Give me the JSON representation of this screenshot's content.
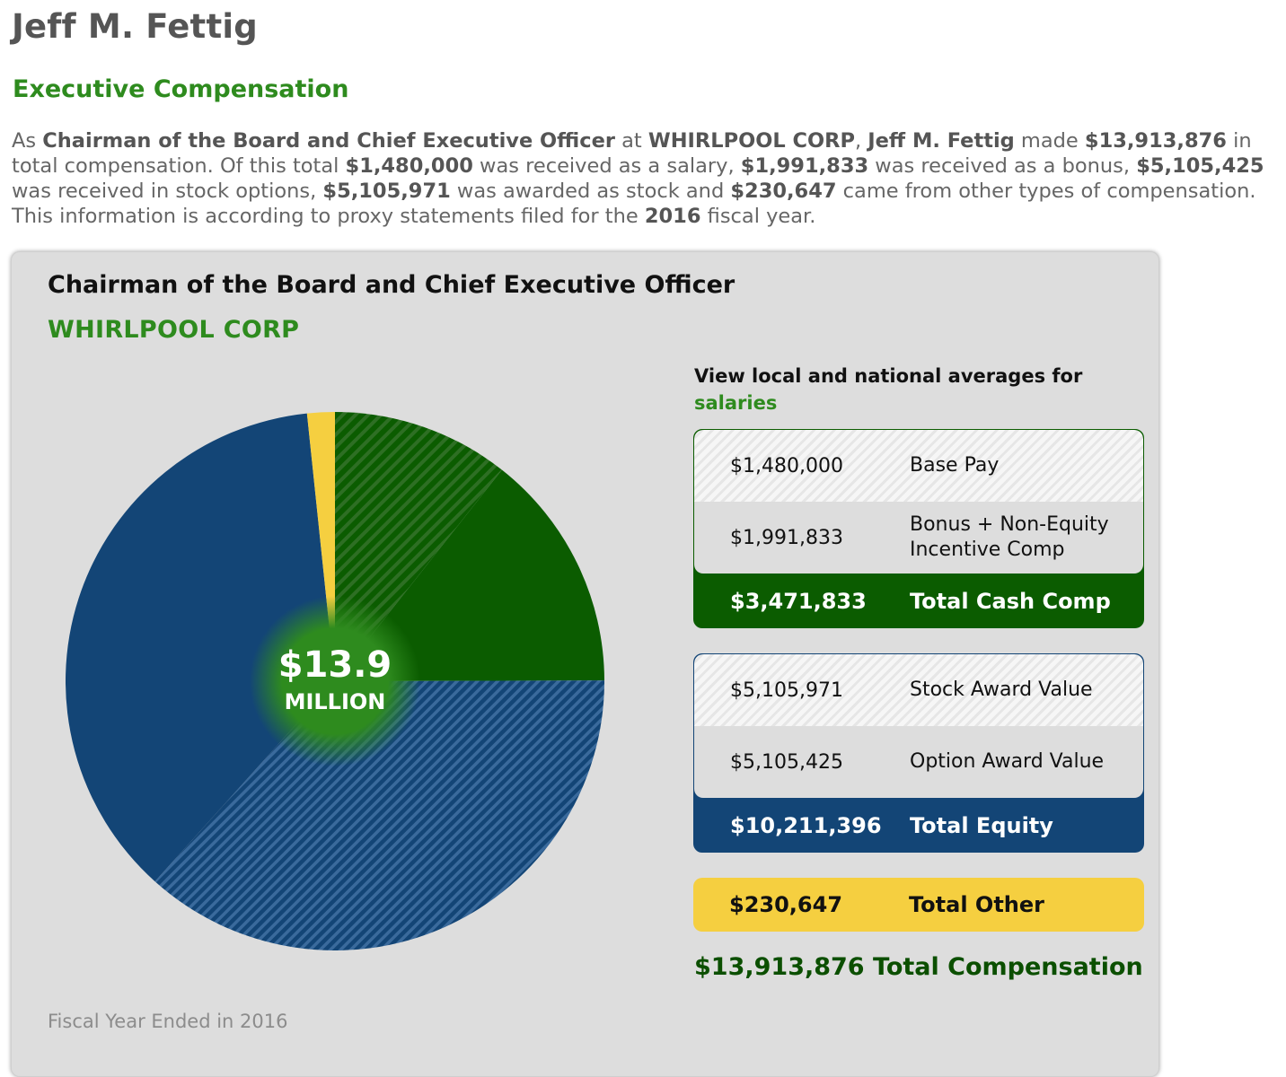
{
  "header": {
    "name": "Jeff M. Fettig",
    "section": "Executive Compensation"
  },
  "summary": {
    "p1": "As ",
    "title": "Chairman of the Board and Chief Executive Officer",
    "p2": " at ",
    "company": "WHIRLPOOL CORP",
    "p3": ", ",
    "name": "Jeff M. Fettig",
    "p4": " made ",
    "total": "$13,913,876",
    "p5": " in total compensation. Of this total ",
    "salary": "$1,480,000",
    "p6": " was received as a salary, ",
    "bonus": "$1,991,833",
    "p7": " was received as a bonus, ",
    "options": "$5,105,425",
    "p8": " was received in stock options, ",
    "stock": "$5,105,971",
    "p9": " was awarded as stock and ",
    "other": "$230,647",
    "p10": " came from other types of compensation. This information is according to proxy statements filed for the ",
    "year": "2016",
    "p11": " fiscal year."
  },
  "card": {
    "title": "Chairman of the Board and Chief Executive Officer",
    "company": "WHIRLPOOL CORP",
    "fiscal_note": "Fiscal Year Ended in 2016",
    "center_amount": "$13.9",
    "center_unit": "MILLION",
    "averages_intro": "View local and national averages for",
    "averages_link": "salaries"
  },
  "cash": {
    "base_amount": "$1,480,000",
    "base_label": "Base Pay",
    "bonus_amount": "$1,991,833",
    "bonus_label_1": "Bonus + Non-Equity",
    "bonus_label_2": "Incentive Comp",
    "total_amount": "$3,471,833",
    "total_label": "Total Cash Comp"
  },
  "equity": {
    "stock_amount": "$5,105,971",
    "stock_label": "Stock Award Value",
    "option_amount": "$5,105,425",
    "option_label": "Option Award Value",
    "total_amount": "$10,211,396",
    "total_label": "Total Equity"
  },
  "other": {
    "amount": "$230,647",
    "label": "Total Other"
  },
  "grand_total": "$13,913,876 Total Compensation",
  "colors": {
    "green_dark": "#0b5c00",
    "green_accent": "#2e8b1e",
    "blue": "#134576",
    "blue_hatch": "#2f5f92",
    "yellow": "#f5cf40"
  },
  "chart_data": {
    "type": "pie",
    "title": "",
    "categories": [
      "Base Pay",
      "Bonus + Non-Equity Incentive Comp",
      "Stock Award Value",
      "Option Award Value",
      "Total Other"
    ],
    "values": [
      1480000,
      1991833,
      5105971,
      5105425,
      230647
    ],
    "total": 13913876,
    "colors": [
      "#0b5c00",
      "#0b5c00",
      "#134576",
      "#134576",
      "#f5cf40"
    ],
    "patterns": [
      "hatched",
      "solid",
      "hatched",
      "solid",
      "solid"
    ],
    "start": "12 o'clock",
    "direction": "clockwise"
  }
}
